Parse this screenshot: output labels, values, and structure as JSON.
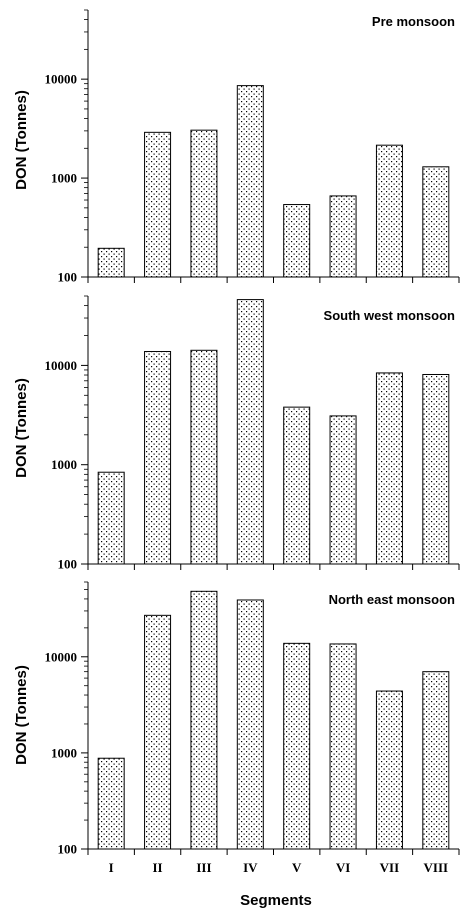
{
  "chart_data": [
    {
      "type": "bar",
      "title": "Pre monsoon",
      "ylabel": "DON (Tonnes)",
      "xlabel": "",
      "yscale": "log",
      "ylim": [
        100,
        50000
      ],
      "yticks": [
        "100",
        "1000",
        "10000"
      ],
      "categories": [
        "I",
        "II",
        "III",
        "IV",
        "V",
        "VI",
        "VII",
        "VIII"
      ],
      "values": [
        195,
        2900,
        3050,
        8600,
        540,
        660,
        2150,
        1300
      ],
      "show_xtick_labels": false
    },
    {
      "type": "bar",
      "title": "South west monsoon",
      "ylabel": "DON (Tonnes)",
      "xlabel": "",
      "yscale": "log",
      "ylim": [
        100,
        50000
      ],
      "yticks": [
        "100",
        "1000",
        "10000"
      ],
      "categories": [
        "I",
        "II",
        "III",
        "IV",
        "V",
        "VI",
        "VII",
        "VIII"
      ],
      "values": [
        840,
        13800,
        14200,
        46000,
        3800,
        3100,
        8400,
        8100
      ],
      "show_xtick_labels": false
    },
    {
      "type": "bar",
      "title": "North east monsoon",
      "ylabel": "DON (Tonnes)",
      "xlabel": "Segments",
      "yscale": "log",
      "ylim": [
        100,
        60000
      ],
      "yticks": [
        "100",
        "1000",
        "10000"
      ],
      "categories": [
        "I",
        "II",
        "III",
        "IV",
        "V",
        "VI",
        "VII",
        "VIII"
      ],
      "values": [
        880,
        27000,
        48000,
        39000,
        13800,
        13600,
        4400,
        7000
      ],
      "show_xtick_labels": true
    }
  ]
}
